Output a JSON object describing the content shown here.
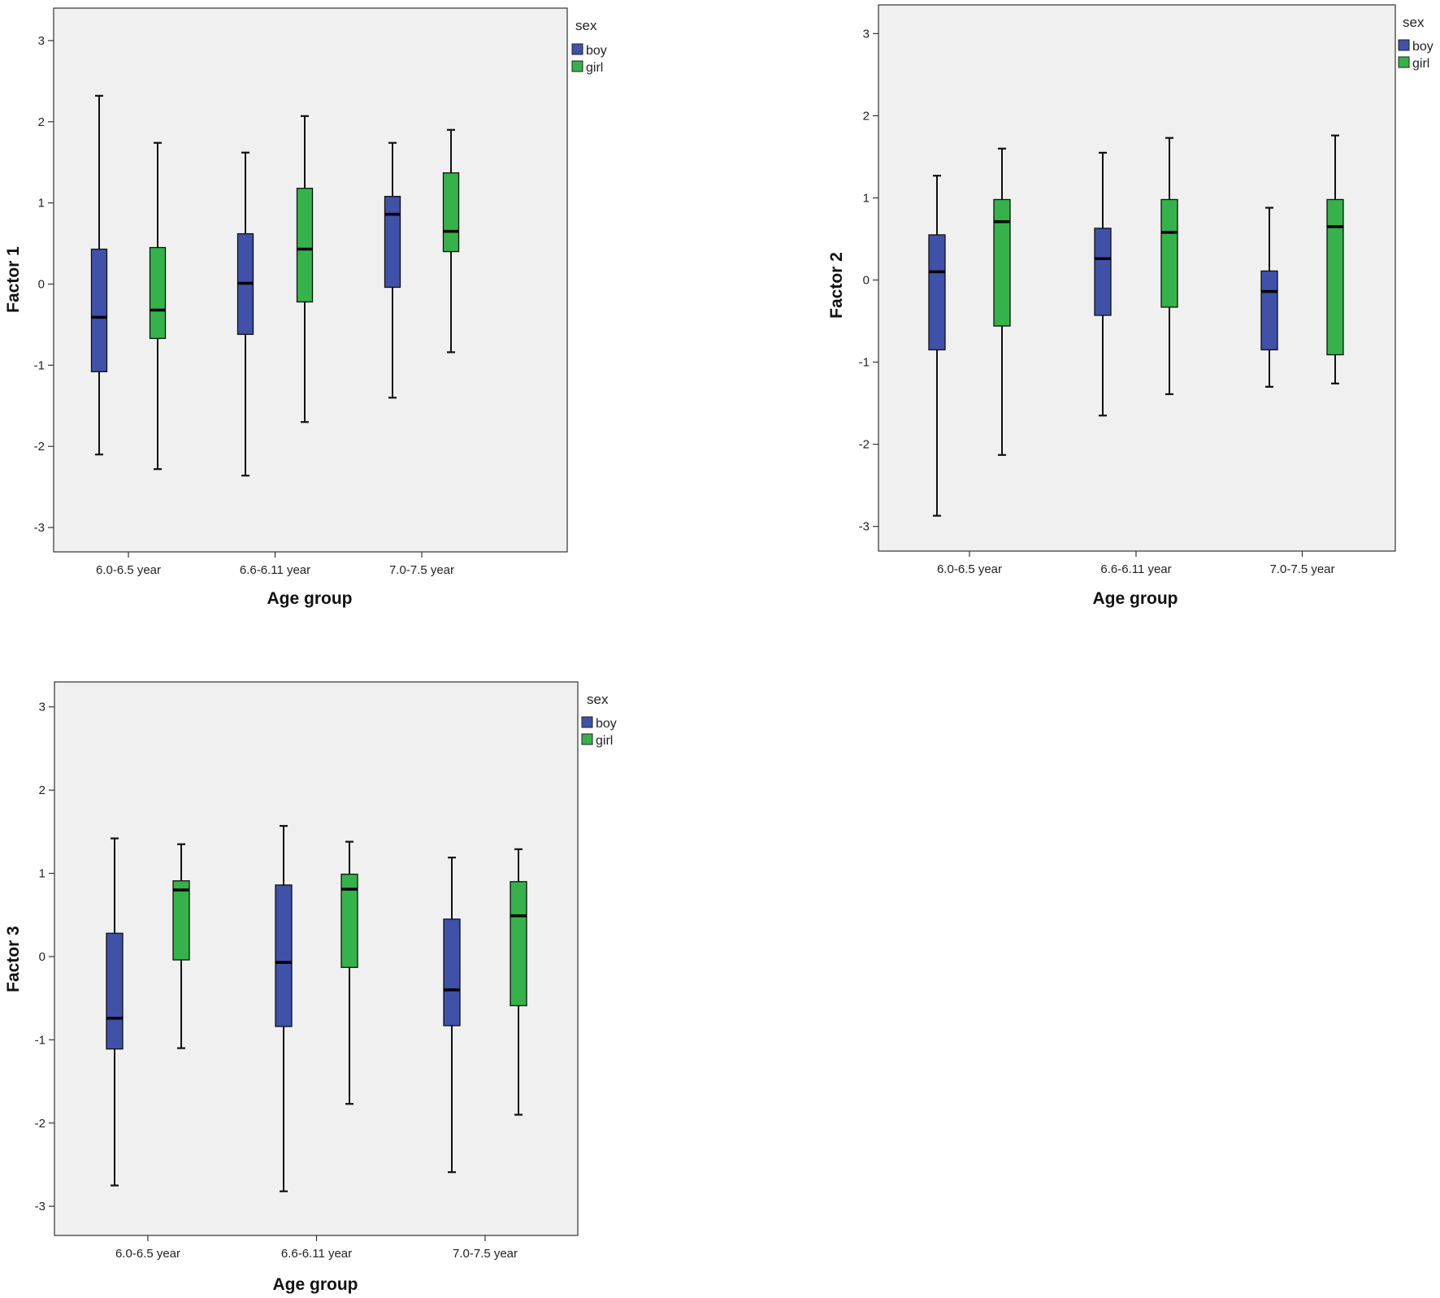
{
  "chart_data": [
    {
      "type": "boxplot",
      "ylabel": "Factor 1",
      "xlabel": "Age group",
      "ylim": [
        -3.3,
        3.4
      ],
      "yticks": [
        "-3",
        "-2",
        "-1",
        "0",
        "1",
        "2",
        "3"
      ],
      "categories": [
        "6.0-6.5 year",
        "6.6-6.11 year",
        "7.0-7.5 year"
      ],
      "legend_title": "sex",
      "series": [
        {
          "name": "boy",
          "color": "#3f51a8",
          "boxes": [
            {
              "min": -2.1,
              "q1": -1.08,
              "median": -0.41,
              "q3": 0.43,
              "max": 2.32
            },
            {
              "min": -2.36,
              "q1": -0.62,
              "median": 0.01,
              "q3": 0.62,
              "max": 1.62
            },
            {
              "min": -1.4,
              "q1": -0.04,
              "median": 0.86,
              "q3": 1.08,
              "max": 1.74
            }
          ]
        },
        {
          "name": "girl",
          "color": "#36b24a",
          "boxes": [
            {
              "min": -2.28,
              "q1": -0.67,
              "median": -0.32,
              "q3": 0.45,
              "max": 1.74
            },
            {
              "min": -1.7,
              "q1": -0.22,
              "median": 0.43,
              "q3": 1.18,
              "max": 2.07
            },
            {
              "min": -0.84,
              "q1": 0.4,
              "median": 0.65,
              "q3": 1.37,
              "max": 1.9
            }
          ]
        }
      ]
    },
    {
      "type": "boxplot",
      "ylabel": "Factor 2",
      "xlabel": "Age group",
      "ylim": [
        -3.3,
        3.35
      ],
      "yticks": [
        "-3",
        "-2",
        "-1",
        "0",
        "1",
        "2",
        "3"
      ],
      "categories": [
        "6.0-6.5 year",
        "6.6-6.11 year",
        "7.0-7.5 year"
      ],
      "legend_title": "sex",
      "series": [
        {
          "name": "boy",
          "color": "#3f51a8",
          "boxes": [
            {
              "min": -2.87,
              "q1": -0.85,
              "median": 0.1,
              "q3": 0.55,
              "max": 1.27
            },
            {
              "min": -1.65,
              "q1": -0.43,
              "median": 0.26,
              "q3": 0.63,
              "max": 1.55
            },
            {
              "min": -1.3,
              "q1": -0.85,
              "median": -0.14,
              "q3": 0.11,
              "max": 0.88
            }
          ]
        },
        {
          "name": "girl",
          "color": "#36b24a",
          "boxes": [
            {
              "min": -2.13,
              "q1": -0.56,
              "median": 0.71,
              "q3": 0.98,
              "max": 1.6
            },
            {
              "min": -1.39,
              "q1": -0.33,
              "median": 0.58,
              "q3": 0.98,
              "max": 1.73
            },
            {
              "min": -1.26,
              "q1": -0.91,
              "median": 0.65,
              "q3": 0.98,
              "max": 1.76
            }
          ]
        }
      ]
    },
    {
      "type": "boxplot",
      "ylabel": "Factor 3",
      "xlabel": "Age group",
      "ylim": [
        -3.35,
        3.3
      ],
      "yticks": [
        "-3",
        "-2",
        "-1",
        "0",
        "1",
        "2",
        "3"
      ],
      "categories": [
        "6.0-6.5 year",
        "6.6-6.11 year",
        "7.0-7.5 year"
      ],
      "legend_title": "sex",
      "series": [
        {
          "name": "boy",
          "color": "#3f51a8",
          "boxes": [
            {
              "min": -2.75,
              "q1": -1.11,
              "median": -0.74,
              "q3": 0.28,
              "max": 1.42
            },
            {
              "min": -2.82,
              "q1": -0.84,
              "median": -0.07,
              "q3": 0.86,
              "max": 1.57
            },
            {
              "min": -2.59,
              "q1": -0.83,
              "median": -0.4,
              "q3": 0.45,
              "max": 1.19
            }
          ]
        },
        {
          "name": "girl",
          "color": "#36b24a",
          "boxes": [
            {
              "min": -1.1,
              "q1": -0.04,
              "median": 0.8,
              "q3": 0.91,
              "max": 1.35
            },
            {
              "min": -1.77,
              "q1": -0.13,
              "median": 0.81,
              "q3": 0.99,
              "max": 1.38
            },
            {
              "min": -1.9,
              "q1": -0.59,
              "median": 0.49,
              "q3": 0.9,
              "max": 1.29
            }
          ]
        }
      ]
    }
  ]
}
